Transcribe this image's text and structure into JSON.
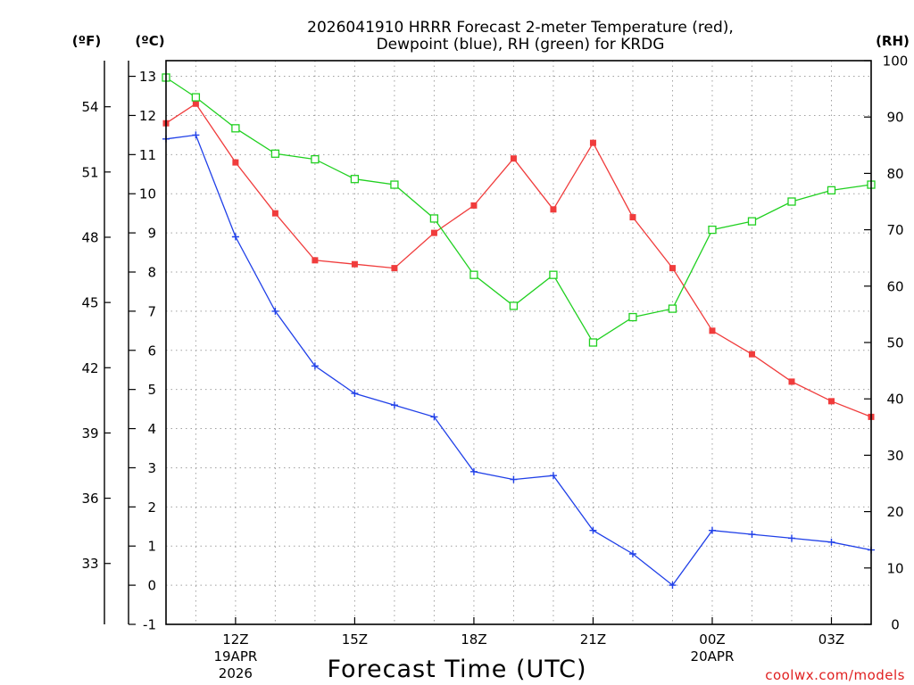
{
  "chart_data": {
    "type": "line",
    "title_line1": "2026041910 HRRR Forecast 2-meter Temperature (red),",
    "title_line2": "Dewpoint (blue), RH (green) for KRDG",
    "xlabel": "Forecast Time (UTC)",
    "unit_left_f": "(ºF)",
    "unit_left_c": "(ºC)",
    "unit_right": "(RH)",
    "credit": "coolwx.com/models",
    "x_ticks": [
      {
        "x": 11,
        "label": "12Z",
        "sub1": "19APR",
        "sub2": "2026"
      },
      {
        "x": 14,
        "label": "15Z",
        "sub1": "",
        "sub2": ""
      },
      {
        "x": 17,
        "label": "18Z",
        "sub1": "",
        "sub2": ""
      },
      {
        "x": 20,
        "label": "21Z",
        "sub1": "",
        "sub2": ""
      },
      {
        "x": 23,
        "label": "00Z",
        "sub1": "20APR",
        "sub2": ""
      },
      {
        "x": 26,
        "label": "03Z",
        "sub1": "",
        "sub2": ""
      }
    ],
    "xlim": [
      9.25,
      27.0
    ],
    "c_ylim": [
      -1,
      13.4
    ],
    "rh_ylim": [
      0,
      100
    ],
    "c_ticks": [
      "-1",
      "0",
      "1",
      "2",
      "3",
      "4",
      "5",
      "6",
      "7",
      "8",
      "9",
      "10",
      "11",
      "12",
      "13"
    ],
    "f_ticks": [
      "33",
      "36",
      "39",
      "42",
      "45",
      "48",
      "51",
      "54"
    ],
    "rh_ticks": [
      "0",
      "10",
      "20",
      "30",
      "40",
      "50",
      "60",
      "70",
      "80",
      "90",
      "100"
    ],
    "series": [
      {
        "name": "Temperature",
        "color": "#f03c3c",
        "marker": "square-filled",
        "x": [
          9.25,
          10,
          11,
          12,
          13,
          14,
          15,
          16,
          17,
          18,
          19,
          20,
          21,
          22,
          23,
          24,
          25,
          26,
          27
        ],
        "values": [
          11.8,
          12.3,
          10.8,
          9.5,
          8.3,
          8.2,
          8.1,
          9.0,
          9.7,
          10.9,
          9.6,
          11.3,
          9.4,
          8.1,
          6.5,
          5.9,
          5.2,
          4.7,
          4.3
        ]
      },
      {
        "name": "Dewpoint",
        "color": "#2040e8",
        "marker": "plus",
        "x": [
          9.25,
          10,
          11,
          12,
          13,
          14,
          15,
          16,
          17,
          18,
          19,
          20,
          21,
          22,
          23,
          24,
          25,
          26,
          27
        ],
        "values": [
          11.4,
          11.5,
          8.9,
          7.0,
          5.6,
          4.9,
          4.6,
          4.3,
          2.9,
          2.7,
          2.8,
          1.4,
          0.8,
          0.0,
          1.4,
          1.3,
          1.2,
          1.1,
          0.9
        ]
      },
      {
        "name": "RH",
        "color": "#20d020",
        "marker": "square-open",
        "x": [
          9.25,
          10,
          11,
          12,
          13,
          14,
          15,
          16,
          17,
          18,
          19,
          20,
          21,
          22,
          23,
          24,
          25,
          26,
          27
        ],
        "values": [
          97,
          93.5,
          88,
          83.5,
          82.5,
          79,
          78,
          72,
          62,
          56.5,
          62,
          50,
          54.5,
          56,
          70,
          71.5,
          75,
          77,
          78
        ]
      }
    ]
  }
}
